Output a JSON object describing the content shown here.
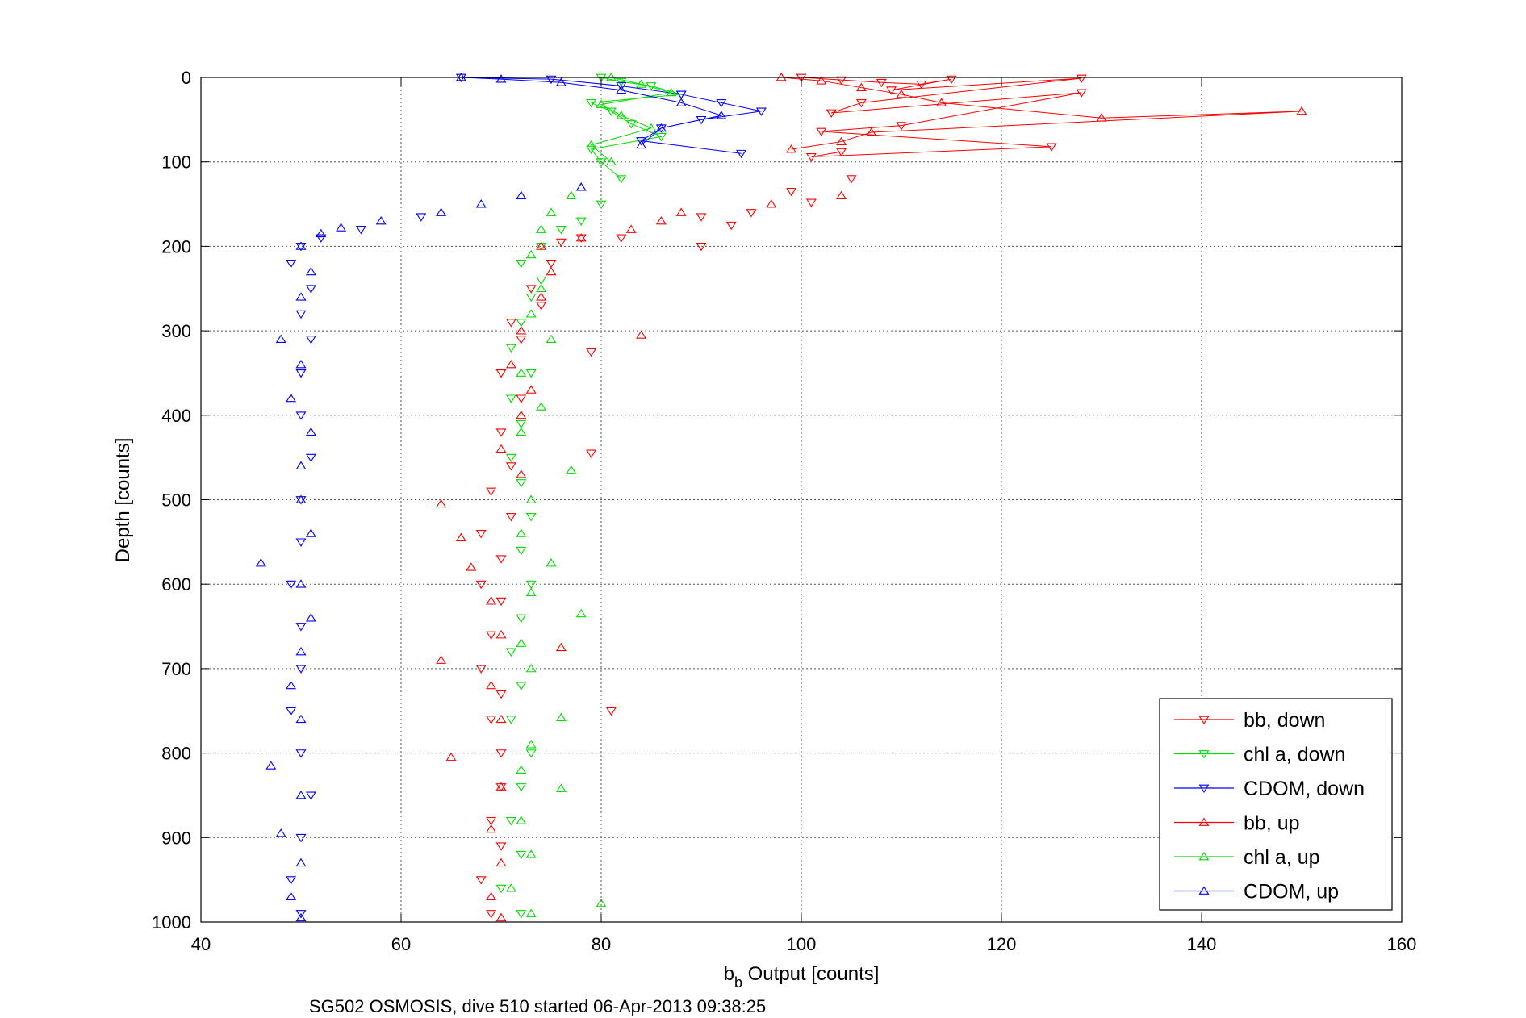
{
  "chart_data": {
    "type": "scatter",
    "xlabel_main": "b",
    "xlabel_sub": "b",
    "xlabel_rest": " Output [counts]",
    "ylabel": "Depth [counts]",
    "caption": "SG502 OSMOSIS, dive 510 started 06-Apr-2013 09:38:25",
    "xlim": [
      40,
      160
    ],
    "ylim": [
      1000,
      0
    ],
    "y_reversed": true,
    "grid": true,
    "legend_position": "bottom-right",
    "xticks": [
      "40",
      "60",
      "80",
      "100",
      "120",
      "140",
      "160"
    ],
    "yticks": [
      "0",
      "100",
      "200",
      "300",
      "400",
      "500",
      "600",
      "700",
      "800",
      "900",
      "1000"
    ],
    "series": [
      {
        "name": "bb, down",
        "color": "#ff0000",
        "marker": "triangle-down",
        "surface_x": [
          100,
          104,
          108,
          112,
          115,
          109,
          128,
          106,
          103,
          128,
          110,
          102,
          125,
          101,
          104
        ],
        "surface_y": [
          0,
          3,
          6,
          8,
          2,
          15,
          1,
          30,
          42,
          18,
          57,
          64,
          82,
          94,
          88
        ],
        "depth_points": [
          [
            105,
            120
          ],
          [
            99,
            135
          ],
          [
            101,
            148
          ],
          [
            95,
            160
          ],
          [
            90,
            165
          ],
          [
            93,
            175
          ],
          [
            78,
            190
          ],
          [
            82,
            190
          ],
          [
            76,
            195
          ],
          [
            90,
            200
          ],
          [
            75,
            220
          ],
          [
            73,
            250
          ],
          [
            74,
            270
          ],
          [
            71,
            290
          ],
          [
            72,
            310
          ],
          [
            79,
            325
          ],
          [
            70,
            350
          ],
          [
            72,
            380
          ],
          [
            70,
            420
          ],
          [
            79,
            445
          ],
          [
            71,
            460
          ],
          [
            69,
            490
          ],
          [
            71,
            520
          ],
          [
            68,
            540
          ],
          [
            70,
            570
          ],
          [
            68,
            600
          ],
          [
            70,
            620
          ],
          [
            69,
            660
          ],
          [
            68,
            700
          ],
          [
            70,
            730
          ],
          [
            81,
            750
          ],
          [
            69,
            760
          ],
          [
            70,
            800
          ],
          [
            70,
            840
          ],
          [
            69,
            880
          ],
          [
            70,
            910
          ],
          [
            68,
            950
          ],
          [
            69,
            990
          ]
        ]
      },
      {
        "name": "chl a, down",
        "color": "#00dd00",
        "marker": "triangle-down",
        "surface_x": [
          80,
          82,
          85,
          88,
          79,
          81,
          83,
          86,
          79,
          80,
          82
        ],
        "surface_y": [
          0,
          5,
          10,
          20,
          30,
          40,
          55,
          70,
          85,
          100,
          120
        ],
        "depth_points": [
          [
            80,
            150
          ],
          [
            78,
            170
          ],
          [
            76,
            180
          ],
          [
            74,
            200
          ],
          [
            72,
            220
          ],
          [
            74,
            240
          ],
          [
            73,
            260
          ],
          [
            72,
            290
          ],
          [
            71,
            320
          ],
          [
            73,
            350
          ],
          [
            71,
            380
          ],
          [
            72,
            410
          ],
          [
            71,
            450
          ],
          [
            72,
            480
          ],
          [
            73,
            520
          ],
          [
            72,
            560
          ],
          [
            73,
            600
          ],
          [
            72,
            640
          ],
          [
            71,
            680
          ],
          [
            72,
            720
          ],
          [
            71,
            760
          ],
          [
            73,
            800
          ],
          [
            72,
            840
          ],
          [
            71,
            880
          ],
          [
            72,
            920
          ],
          [
            70,
            960
          ],
          [
            72,
            990
          ]
        ]
      },
      {
        "name": "CDOM, down",
        "color": "#0000ff",
        "marker": "triangle-down",
        "surface_x": [
          66,
          75,
          82,
          88,
          92,
          96,
          90,
          86,
          84,
          94
        ],
        "surface_y": [
          0,
          2,
          10,
          20,
          30,
          40,
          50,
          60,
          75,
          90
        ],
        "depth_points": [
          [
            62,
            165
          ],
          [
            56,
            180
          ],
          [
            52,
            190
          ],
          [
            50,
            200
          ],
          [
            49,
            220
          ],
          [
            51,
            250
          ],
          [
            50,
            280
          ],
          [
            51,
            310
          ],
          [
            50,
            350
          ],
          [
            50,
            400
          ],
          [
            51,
            450
          ],
          [
            50,
            500
          ],
          [
            50,
            550
          ],
          [
            49,
            600
          ],
          [
            50,
            650
          ],
          [
            50,
            700
          ],
          [
            49,
            750
          ],
          [
            50,
            800
          ],
          [
            51,
            850
          ],
          [
            50,
            900
          ],
          [
            49,
            950
          ],
          [
            50,
            990
          ]
        ]
      },
      {
        "name": "bb, up",
        "color": "#ff0000",
        "marker": "triangle-up",
        "surface_x": [
          98,
          102,
          106,
          110,
          114,
          130,
          150,
          107,
          104,
          99
        ],
        "surface_y": [
          0,
          4,
          12,
          20,
          30,
          48,
          40,
          65,
          76,
          85
        ],
        "depth_points": [
          [
            104,
            140
          ],
          [
            97,
            150
          ],
          [
            88,
            160
          ],
          [
            86,
            170
          ],
          [
            83,
            180
          ],
          [
            78,
            190
          ],
          [
            74,
            200
          ],
          [
            75,
            230
          ],
          [
            74,
            260
          ],
          [
            72,
            300
          ],
          [
            84,
            305
          ],
          [
            71,
            340
          ],
          [
            73,
            370
          ],
          [
            72,
            400
          ],
          [
            70,
            440
          ],
          [
            72,
            470
          ],
          [
            64,
            505
          ],
          [
            66,
            545
          ],
          [
            67,
            580
          ],
          [
            69,
            620
          ],
          [
            70,
            660
          ],
          [
            76,
            675
          ],
          [
            64,
            690
          ],
          [
            69,
            720
          ],
          [
            70,
            760
          ],
          [
            65,
            805
          ],
          [
            70,
            840
          ],
          [
            69,
            890
          ],
          [
            70,
            930
          ],
          [
            69,
            970
          ],
          [
            70,
            995
          ]
        ]
      },
      {
        "name": "chl a, up",
        "color": "#00dd00",
        "marker": "triangle-up",
        "surface_x": [
          81,
          84,
          87,
          80,
          82,
          85,
          79,
          81
        ],
        "surface_y": [
          0,
          8,
          18,
          32,
          45,
          60,
          80,
          100
        ],
        "depth_points": [
          [
            78,
            130
          ],
          [
            77,
            140
          ],
          [
            75,
            160
          ],
          [
            74,
            180
          ],
          [
            73,
            210
          ],
          [
            74,
            250
          ],
          [
            73,
            280
          ],
          [
            75,
            310
          ],
          [
            72,
            350
          ],
          [
            74,
            390
          ],
          [
            72,
            420
          ],
          [
            77,
            465
          ],
          [
            73,
            500
          ],
          [
            72,
            540
          ],
          [
            75,
            575
          ],
          [
            73,
            610
          ],
          [
            78,
            635
          ],
          [
            72,
            670
          ],
          [
            73,
            700
          ],
          [
            76,
            758
          ],
          [
            73,
            790
          ],
          [
            72,
            820
          ],
          [
            76,
            842
          ],
          [
            72,
            880
          ],
          [
            73,
            920
          ],
          [
            71,
            960
          ],
          [
            80,
            978
          ],
          [
            73,
            990
          ]
        ]
      },
      {
        "name": "CDOM, up",
        "color": "#0000ff",
        "marker": "triangle-up",
        "surface_x": [
          66,
          70,
          76,
          82,
          88,
          92,
          86,
          84
        ],
        "surface_y": [
          0,
          2,
          6,
          15,
          30,
          45,
          60,
          80
        ],
        "depth_points": [
          [
            78,
            130
          ],
          [
            72,
            140
          ],
          [
            68,
            150
          ],
          [
            64,
            160
          ],
          [
            58,
            170
          ],
          [
            54,
            178
          ],
          [
            52,
            185
          ],
          [
            50,
            200
          ],
          [
            51,
            230
          ],
          [
            50,
            260
          ],
          [
            48,
            310
          ],
          [
            50,
            340
          ],
          [
            49,
            380
          ],
          [
            51,
            420
          ],
          [
            50,
            460
          ],
          [
            50,
            500
          ],
          [
            51,
            540
          ],
          [
            46,
            575
          ],
          [
            50,
            600
          ],
          [
            51,
            640
          ],
          [
            50,
            680
          ],
          [
            49,
            720
          ],
          [
            50,
            760
          ],
          [
            47,
            815
          ],
          [
            50,
            850
          ],
          [
            48,
            895
          ],
          [
            50,
            930
          ],
          [
            49,
            970
          ],
          [
            50,
            995
          ]
        ]
      }
    ]
  }
}
